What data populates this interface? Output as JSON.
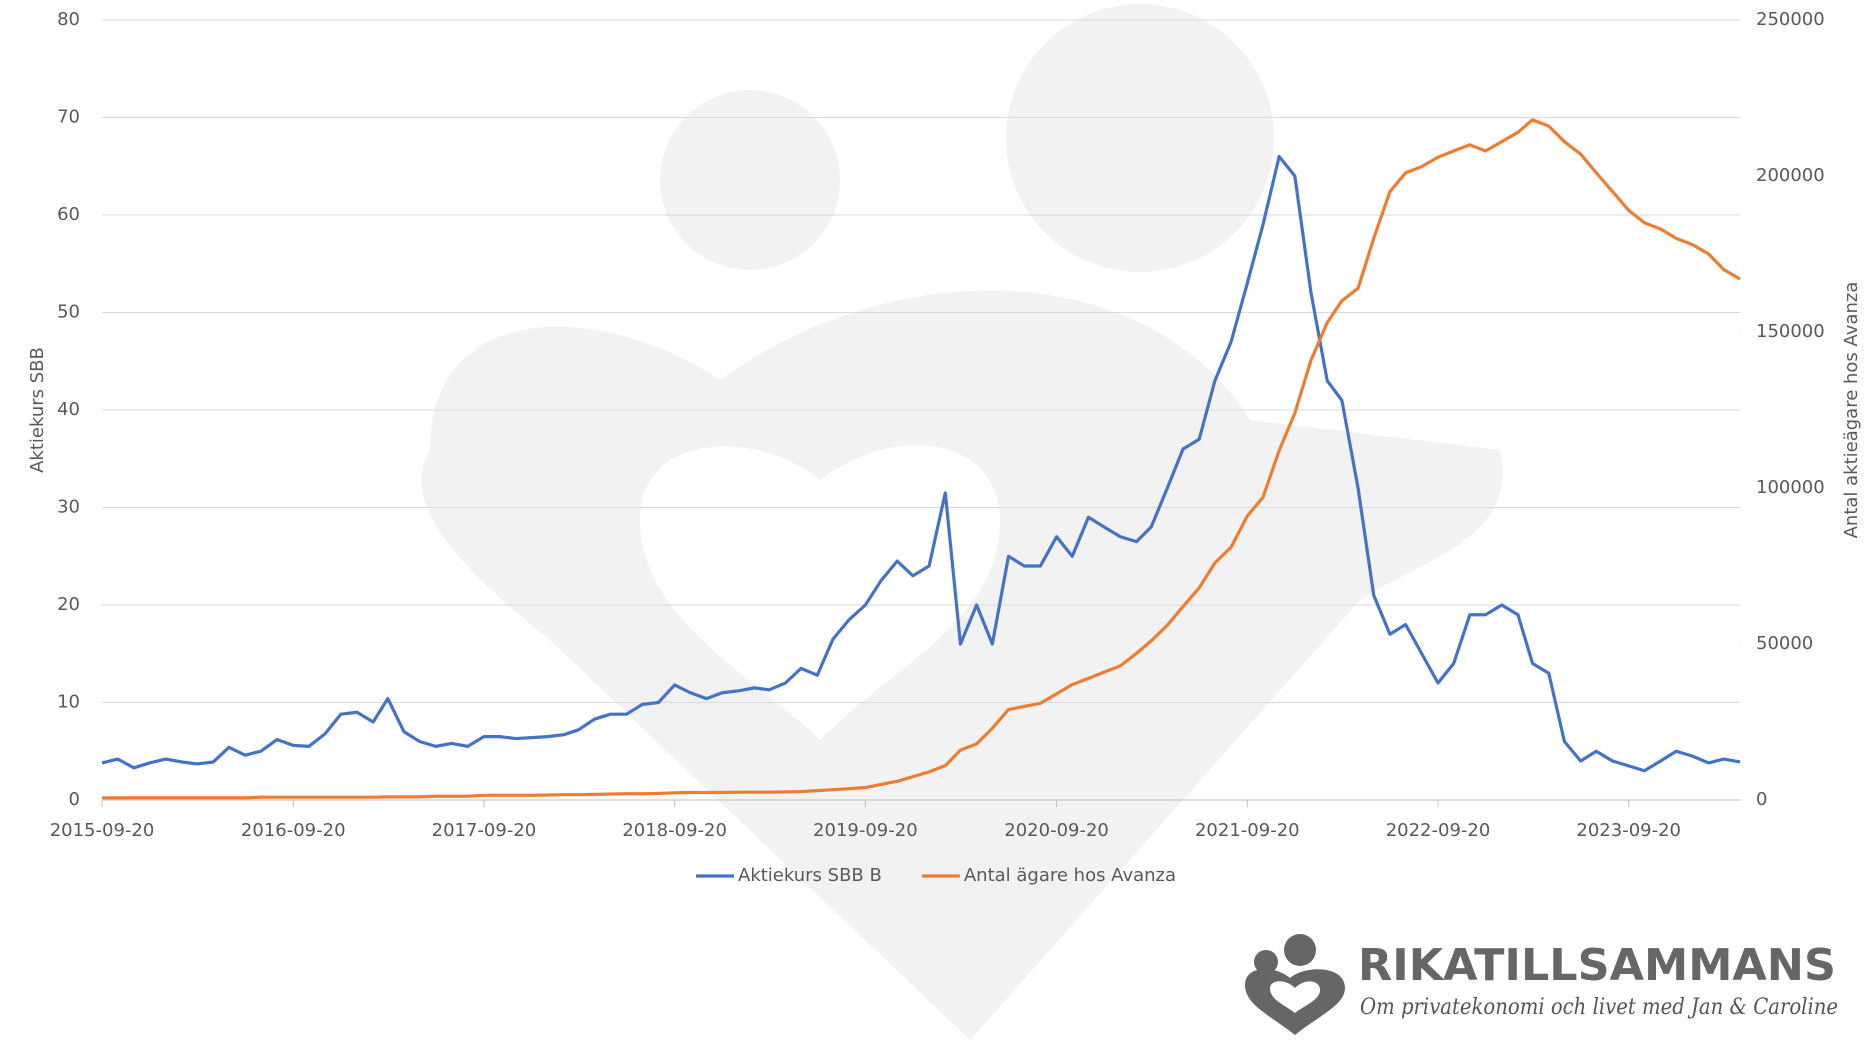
{
  "chart_data": {
    "type": "line",
    "x": [
      "2015-09-20",
      "2015-10-20",
      "2015-11-20",
      "2015-12-20",
      "2016-01-20",
      "2016-02-20",
      "2016-03-20",
      "2016-04-20",
      "2016-05-20",
      "2016-06-20",
      "2016-07-20",
      "2016-08-20",
      "2016-09-20",
      "2016-10-20",
      "2016-11-20",
      "2016-12-20",
      "2017-01-20",
      "2017-02-20",
      "2017-03-20",
      "2017-04-20",
      "2017-05-20",
      "2017-06-20",
      "2017-07-20",
      "2017-08-20",
      "2017-09-20",
      "2017-10-20",
      "2017-11-20",
      "2017-12-20",
      "2018-01-20",
      "2018-02-20",
      "2018-03-20",
      "2018-04-20",
      "2018-05-20",
      "2018-06-20",
      "2018-07-20",
      "2018-08-20",
      "2018-09-20",
      "2018-10-20",
      "2018-11-20",
      "2018-12-20",
      "2019-01-20",
      "2019-02-20",
      "2019-03-20",
      "2019-04-20",
      "2019-05-20",
      "2019-06-20",
      "2019-07-20",
      "2019-08-20",
      "2019-09-20",
      "2019-10-20",
      "2019-11-20",
      "2019-12-20",
      "2020-01-20",
      "2020-02-20",
      "2020-03-20",
      "2020-04-20",
      "2020-05-20",
      "2020-06-20",
      "2020-07-20",
      "2020-08-20",
      "2020-09-20",
      "2020-10-20",
      "2020-11-20",
      "2020-12-20",
      "2021-01-20",
      "2021-02-20",
      "2021-03-20",
      "2021-04-20",
      "2021-05-20",
      "2021-06-20",
      "2021-07-20",
      "2021-08-20",
      "2021-09-20",
      "2021-10-20",
      "2021-11-20",
      "2021-12-20",
      "2022-01-20",
      "2022-02-20",
      "2022-03-20",
      "2022-04-20",
      "2022-05-20",
      "2022-06-20",
      "2022-07-20",
      "2022-08-20",
      "2022-09-20",
      "2022-10-20",
      "2022-11-20",
      "2022-12-20",
      "2023-01-20",
      "2023-02-20",
      "2023-03-20",
      "2023-04-20",
      "2023-05-20",
      "2023-06-20",
      "2023-07-20",
      "2023-08-20",
      "2023-09-20",
      "2023-10-20",
      "2023-11-20",
      "2023-12-20",
      "2024-01-20",
      "2024-02-20",
      "2024-03-20",
      "2024-04-20"
    ],
    "series": [
      {
        "name": "Aktiekurs SBB B",
        "color": "#4472c4",
        "axis": "y",
        "values": [
          3.8,
          4.2,
          3.3,
          3.8,
          4.2,
          3.9,
          3.7,
          3.9,
          5.4,
          4.6,
          5.0,
          6.2,
          5.6,
          5.5,
          6.8,
          8.8,
          9.0,
          8.0,
          10.4,
          7.0,
          6.0,
          5.5,
          5.8,
          5.5,
          6.5,
          6.5,
          6.3,
          6.4,
          6.5,
          6.7,
          7.2,
          8.3,
          8.8,
          8.8,
          9.8,
          10.0,
          11.8,
          11.0,
          10.4,
          11.0,
          11.2,
          11.5,
          11.3,
          12.0,
          13.5,
          12.8,
          16.5,
          18.5,
          20,
          22.5,
          24.5,
          23,
          24,
          31.5,
          16,
          20,
          16,
          25,
          24,
          24,
          27,
          25,
          29,
          28,
          27,
          26.5,
          28,
          32,
          36,
          37,
          43,
          47,
          53,
          59,
          66,
          64,
          52,
          43,
          41,
          32,
          21,
          17,
          18,
          15,
          12,
          14,
          19,
          19,
          20,
          19,
          14,
          13,
          6,
          4,
          5,
          4,
          3.5,
          3,
          4,
          5,
          4.5,
          3.8,
          4.2,
          3.9
        ]
      },
      {
        "name": "Antal ägare hos Avanza",
        "color": "#ed7d31",
        "axis": "y2",
        "values": [
          700,
          700,
          700,
          700,
          700,
          700,
          700,
          700,
          700,
          700,
          900,
          900,
          900,
          900,
          900,
          900,
          900,
          900,
          1000,
          1000,
          1000,
          1200,
          1200,
          1200,
          1500,
          1500,
          1500,
          1500,
          1600,
          1700,
          1700,
          1800,
          1900,
          2000,
          2000,
          2100,
          2300,
          2400,
          2400,
          2400,
          2500,
          2500,
          2500,
          2600,
          2700,
          3000,
          3300,
          3600,
          4000,
          5000,
          6000,
          7500,
          9000,
          11000,
          16000,
          18000,
          23000,
          29000,
          30000,
          31000,
          34000,
          37000,
          39000,
          41000,
          43000,
          47000,
          51000,
          56000,
          62000,
          68000,
          76000,
          81000,
          91000,
          97000,
          112000,
          124000,
          141000,
          153000,
          160000,
          164000,
          180000,
          195000,
          201000,
          203000,
          206000,
          208000,
          210000,
          208000,
          211000,
          214000,
          218000,
          216000,
          211000,
          207000,
          201000,
          195000,
          189000,
          185000,
          183000,
          180000,
          178000,
          175000,
          170000,
          167000
        ]
      }
    ],
    "xlim": [
      "2015-09-20",
      "2024-04-20"
    ],
    "xticks": [
      "2015-09-20",
      "2016-09-20",
      "2017-09-20",
      "2018-09-20",
      "2019-09-20",
      "2020-09-20",
      "2021-09-20",
      "2022-09-20",
      "2023-09-20"
    ],
    "ylim": [
      0,
      80
    ],
    "yticks": [
      0,
      10,
      20,
      30,
      40,
      50,
      60,
      70,
      80
    ],
    "y2lim": [
      0,
      250000
    ],
    "y2ticks": [
      0,
      50000,
      100000,
      150000,
      200000,
      250000
    ],
    "ylabel": "Aktiekurs SBB",
    "y2label": "Antal aktieägare hos Avanza",
    "grid": true,
    "legend": "bottom"
  },
  "brand": {
    "name": "RIKATILLSAMMANS",
    "tagline": "Om privatekonomi och livet med Jan & Caroline"
  }
}
